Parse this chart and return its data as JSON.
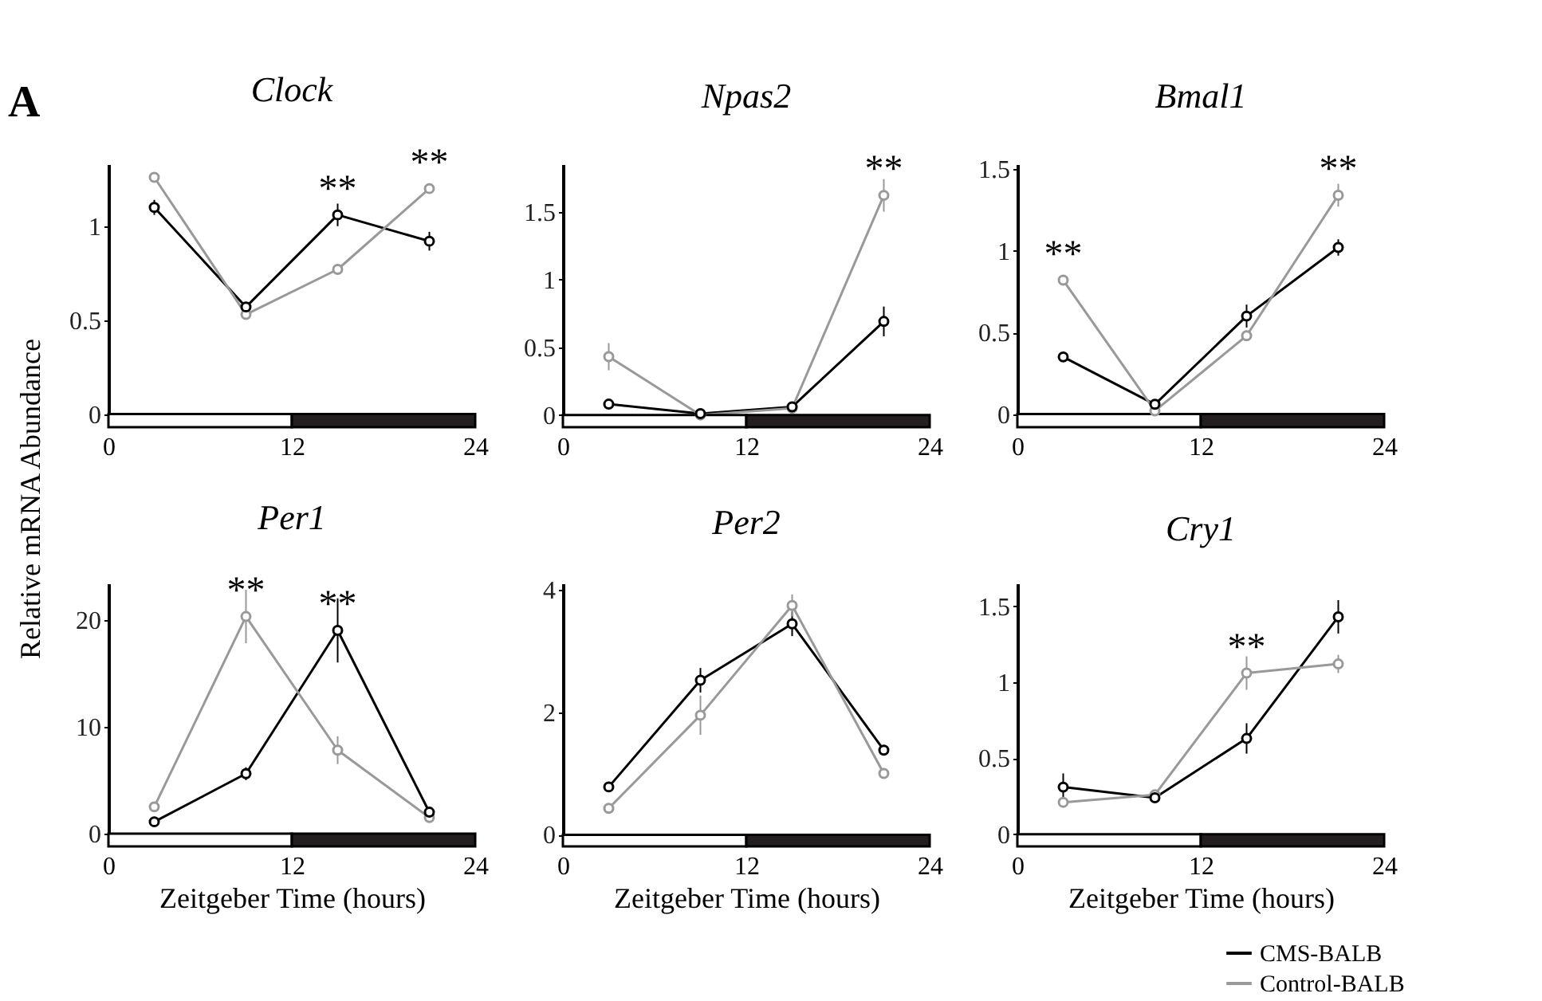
{
  "chart_data": [
    {
      "type": "line",
      "title": "Clock",
      "ylabel": "Relative mRNA Abundance",
      "x": [
        3,
        9,
        15,
        21
      ],
      "xlim": [
        0,
        24
      ],
      "xticks": [
        0,
        12,
        24
      ],
      "ylim": [
        -0.07,
        1.33
      ],
      "yticks": [
        0,
        0.5,
        1
      ],
      "grid": false,
      "marker": "circle",
      "line_style": "solid",
      "series": [
        {
          "color": "#000000",
          "values": [
            1.1,
            0.57,
            1.06,
            0.92
          ],
          "errors": [
            0.04,
            null,
            0.06,
            0.05
          ]
        },
        {
          "color": "#999999",
          "values": [
            1.26,
            0.53,
            0.77,
            1.2
          ],
          "errors": [
            null,
            null,
            null,
            null
          ]
        }
      ],
      "bands": [
        {
          "axis": "x",
          "from": 0,
          "to": 12,
          "color": "#ffffff"
        },
        {
          "axis": "x",
          "from": 12,
          "to": 24,
          "color": "#231f20"
        }
      ],
      "annotations": [
        "A",
        {
          "text": "**",
          "x": 15,
          "y": 1.06
        },
        {
          "text": "**",
          "x": 21,
          "y": 1.2
        }
      ]
    },
    {
      "type": "line",
      "title": "Npas2",
      "x": [
        3,
        9,
        15,
        21
      ],
      "xlim": [
        0,
        24
      ],
      "xticks": [
        0,
        12,
        24
      ],
      "ylim": [
        -0.09,
        1.85
      ],
      "yticks": [
        0,
        0.5,
        1,
        1.5
      ],
      "grid": false,
      "marker": "circle",
      "line_style": "solid",
      "series": [
        {
          "color": "#000000",
          "values": [
            0.08,
            0.01,
            0.06,
            0.69
          ],
          "errors": [
            null,
            null,
            null,
            0.11
          ]
        },
        {
          "color": "#999999",
          "values": [
            0.43,
            0.0,
            0.05,
            1.62
          ],
          "errors": [
            0.1,
            null,
            null,
            0.12
          ]
        }
      ],
      "bands": [
        {
          "axis": "x",
          "from": 0,
          "to": 12,
          "color": "#ffffff"
        },
        {
          "axis": "x",
          "from": 12,
          "to": 24,
          "color": "#231f20"
        }
      ],
      "annotations": [
        {
          "text": "**",
          "x": 21,
          "y": 1.62
        }
      ]
    },
    {
      "type": "line",
      "title": "Bmal1",
      "x": [
        3,
        9,
        15,
        21
      ],
      "xlim": [
        0,
        24
      ],
      "xticks": [
        0,
        12,
        24
      ],
      "ylim": [
        -0.08,
        1.53
      ],
      "yticks": [
        0,
        0.5,
        1,
        1.5
      ],
      "grid": false,
      "marker": "circle",
      "line_style": "solid",
      "series": [
        {
          "color": "#000000",
          "values": [
            0.35,
            0.06,
            0.6,
            1.02
          ],
          "errors": [
            null,
            null,
            0.07,
            0.05
          ]
        },
        {
          "color": "#999999",
          "values": [
            0.82,
            0.02,
            0.48,
            1.34
          ],
          "errors": [
            null,
            null,
            null,
            0.07
          ]
        }
      ],
      "bands": [
        {
          "axis": "x",
          "from": 0,
          "to": 12,
          "color": "#ffffff"
        },
        {
          "axis": "x",
          "from": 12,
          "to": 24,
          "color": "#231f20"
        }
      ],
      "annotations": [
        {
          "text": "**",
          "x": 3,
          "y": 0.82
        },
        {
          "text": "**",
          "x": 21,
          "y": 1.34
        }
      ]
    },
    {
      "type": "line",
      "title": "Per1",
      "xlabel": "Zeitgeber Time (hours)",
      "x": [
        3,
        9,
        15,
        21
      ],
      "xlim": [
        0,
        24
      ],
      "xticks": [
        0,
        12,
        24
      ],
      "ylim": [
        -1.2,
        23.4
      ],
      "yticks": [
        0,
        10,
        20
      ],
      "grid": false,
      "marker": "circle",
      "line_style": "solid",
      "series": [
        {
          "color": "#000000",
          "values": [
            1.1,
            5.6,
            19.0,
            2.0
          ],
          "errors": [
            null,
            0.6,
            3.0,
            null
          ]
        },
        {
          "color": "#999999",
          "values": [
            2.5,
            20.3,
            7.8,
            1.5
          ],
          "errors": [
            null,
            2.5,
            1.3,
            null
          ]
        }
      ],
      "bands": [
        {
          "axis": "x",
          "from": 0,
          "to": 12,
          "color": "#ffffff"
        },
        {
          "axis": "x",
          "from": 12,
          "to": 24,
          "color": "#231f20"
        }
      ],
      "annotations": [
        {
          "text": "**",
          "x": 9,
          "y": 20.3
        },
        {
          "text": "**",
          "x": 15,
          "y": 19.0
        }
      ]
    },
    {
      "type": "line",
      "title": "Per2",
      "xlabel": "Zeitgeber Time (hours)",
      "x": [
        3,
        9,
        15,
        21
      ],
      "xlim": [
        0,
        24
      ],
      "xticks": [
        0,
        12,
        24
      ],
      "ylim": [
        -0.19,
        4.1
      ],
      "yticks": [
        0,
        2,
        4
      ],
      "grid": false,
      "marker": "circle",
      "line_style": "solid",
      "series": [
        {
          "color": "#000000",
          "values": [
            0.78,
            2.52,
            3.44,
            1.38
          ],
          "errors": [
            0.07,
            0.2,
            0.2,
            null
          ]
        },
        {
          "color": "#999999",
          "values": [
            0.43,
            1.95,
            3.74,
            1.0
          ],
          "errors": [
            0.08,
            0.32,
            0.18,
            null
          ]
        }
      ],
      "bands": [
        {
          "axis": "x",
          "from": 0,
          "to": 12,
          "color": "#ffffff"
        },
        {
          "axis": "x",
          "from": 12,
          "to": 24,
          "color": "#231f20"
        }
      ]
    },
    {
      "type": "line",
      "title": "Cry1",
      "xlabel": "Zeitgeber Time (hours)",
      "x": [
        3,
        9,
        15,
        21
      ],
      "xlim": [
        0,
        24
      ],
      "xticks": [
        0,
        12,
        24
      ],
      "ylim": [
        -0.08,
        1.65
      ],
      "yticks": [
        0,
        0.5,
        1,
        1.5
      ],
      "grid": false,
      "marker": "circle",
      "line_style": "solid",
      "legend": "bottom right",
      "series": [
        {
          "name": "CMS-BALB",
          "color": "#000000",
          "values": [
            0.31,
            0.24,
            0.63,
            1.43
          ],
          "errors": [
            0.09,
            null,
            0.1,
            0.11
          ]
        },
        {
          "name": "Control-BALB",
          "color": "#999999",
          "values": [
            0.21,
            0.26,
            1.06,
            1.12
          ],
          "errors": [
            0.02,
            null,
            0.11,
            0.06
          ]
        }
      ],
      "bands": [
        {
          "axis": "x",
          "from": 0,
          "to": 12,
          "color": "#ffffff"
        },
        {
          "axis": "x",
          "from": 12,
          "to": 24,
          "color": "#231f20"
        }
      ],
      "annotations": [
        {
          "text": "**",
          "x": 15,
          "y": 1.06
        }
      ]
    }
  ]
}
